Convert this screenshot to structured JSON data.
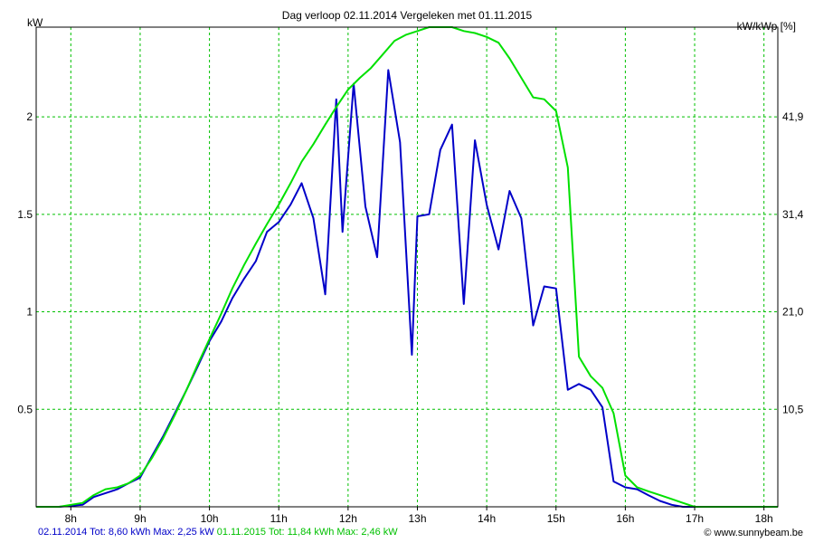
{
  "chart_data": {
    "type": "line",
    "title": "Dag  verloop 02.11.2014   Vergeleken met 01.11.2015",
    "ylabel_left": "kW",
    "ylabel_right": "kW/kWp [%]",
    "x_ticks": [
      "8h",
      "9h",
      "10h",
      "11h",
      "12h",
      "13h",
      "14h",
      "15h",
      "16h",
      "17h",
      "18h"
    ],
    "y_ticks_left": [
      "0.5",
      "1",
      "1.5",
      "2"
    ],
    "y_ticks_right": [
      "10,5",
      "21,0",
      "31,4",
      "41,9"
    ],
    "xlim": [
      7.5,
      18.2
    ],
    "ylim": [
      0,
      2.46
    ],
    "grid": true,
    "series": [
      {
        "name": "02.11.2014",
        "color": "#0000c8",
        "x": [
          7.5,
          7.83,
          8.17,
          8.33,
          8.5,
          8.67,
          8.83,
          9.0,
          9.17,
          9.33,
          9.5,
          9.67,
          9.83,
          10.0,
          10.17,
          10.33,
          10.5,
          10.67,
          10.83,
          11.0,
          11.17,
          11.33,
          11.5,
          11.67,
          11.83,
          11.92,
          12.08,
          12.25,
          12.42,
          12.58,
          12.75,
          12.92,
          13.0,
          13.17,
          13.33,
          13.5,
          13.67,
          13.83,
          14.0,
          14.17,
          14.33,
          14.5,
          14.67,
          14.83,
          15.0,
          15.17,
          15.33,
          15.5,
          15.67,
          15.83,
          16.0,
          16.17,
          16.33,
          16.5,
          16.67,
          16.83,
          17.0,
          17.17,
          17.5,
          18.0,
          18.2
        ],
        "y": [
          0,
          0,
          0.01,
          0.05,
          0.07,
          0.09,
          0.12,
          0.15,
          0.26,
          0.36,
          0.48,
          0.6,
          0.72,
          0.85,
          0.95,
          1.07,
          1.17,
          1.26,
          1.41,
          1.46,
          1.55,
          1.66,
          1.48,
          1.09,
          2.09,
          1.41,
          2.17,
          1.54,
          1.28,
          2.24,
          1.87,
          0.78,
          1.49,
          1.5,
          1.83,
          1.96,
          1.04,
          1.88,
          1.55,
          1.32,
          1.62,
          1.48,
          0.93,
          1.13,
          1.12,
          0.6,
          0.63,
          0.6,
          0.51,
          0.13,
          0.1,
          0.09,
          0.06,
          0.03,
          0.01,
          0,
          0,
          0,
          0,
          0,
          0
        ]
      },
      {
        "name": "01.11.2015",
        "color": "#00e000",
        "x": [
          7.5,
          7.83,
          8.0,
          8.17,
          8.33,
          8.5,
          8.67,
          8.83,
          9.0,
          9.17,
          9.33,
          9.5,
          9.67,
          9.83,
          10.0,
          10.17,
          10.33,
          10.5,
          10.67,
          10.83,
          11.0,
          11.17,
          11.33,
          11.5,
          11.67,
          11.83,
          12.0,
          12.17,
          12.33,
          12.5,
          12.67,
          12.83,
          13.0,
          13.17,
          13.33,
          13.5,
          13.67,
          13.83,
          14.0,
          14.17,
          14.33,
          14.5,
          14.67,
          14.83,
          15.0,
          15.17,
          15.33,
          15.5,
          15.67,
          15.83,
          16.0,
          16.17,
          16.33,
          16.5,
          16.67,
          16.83,
          17.0,
          17.17,
          17.5,
          17.83,
          18.2
        ],
        "y": [
          0,
          0,
          0.01,
          0.02,
          0.06,
          0.09,
          0.1,
          0.12,
          0.16,
          0.25,
          0.35,
          0.47,
          0.6,
          0.73,
          0.86,
          0.99,
          1.12,
          1.24,
          1.35,
          1.45,
          1.55,
          1.66,
          1.77,
          1.86,
          1.96,
          2.05,
          2.14,
          2.2,
          2.25,
          2.32,
          2.39,
          2.42,
          2.44,
          2.46,
          2.46,
          2.46,
          2.44,
          2.43,
          2.41,
          2.38,
          2.3,
          2.2,
          2.1,
          2.09,
          2.03,
          1.74,
          0.77,
          0.67,
          0.61,
          0.48,
          0.16,
          0.1,
          0.08,
          0.06,
          0.04,
          0.02,
          0,
          0,
          0,
          0,
          0
        ]
      }
    ]
  },
  "footer": {
    "series1": "02.11.2014 Tot: 8,60 kWh Max: 2,25 kW",
    "series2": "01.11.2015 Tot: 11,84 kWh Max: 2,46 kW",
    "credit": "© www.sunnybeam.be"
  }
}
